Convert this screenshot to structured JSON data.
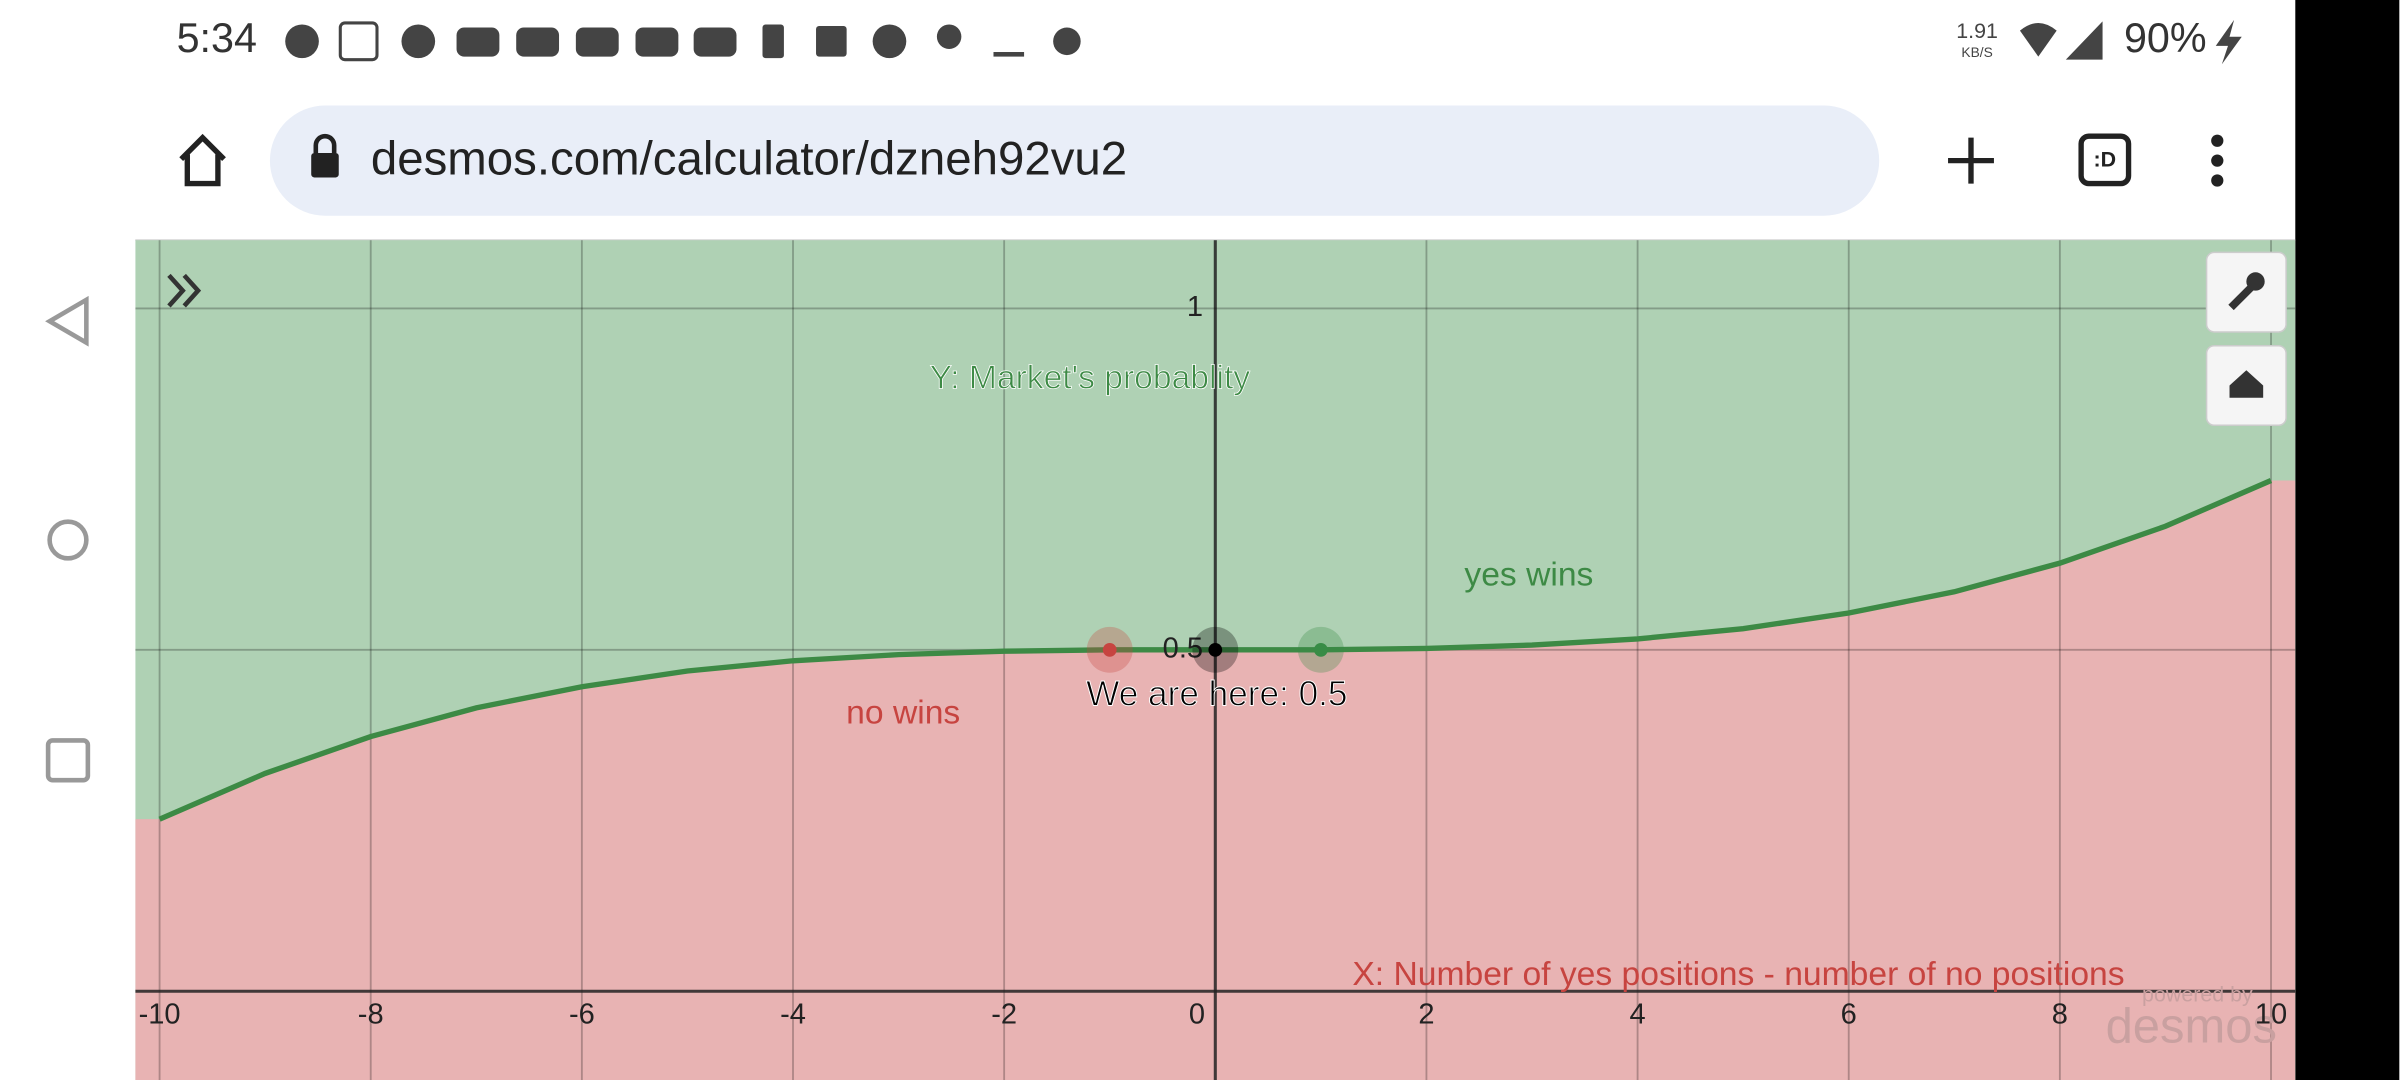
{
  "status_bar": {
    "time": "5:34",
    "network_speed": "1.91",
    "network_unit": "KB/S",
    "battery": "90%"
  },
  "browser": {
    "url": "desmos.com/calculator/dzneh92vu2",
    "tab_icon": ":D"
  },
  "graph": {
    "type": "line",
    "xlim": [
      -10.23,
      10.23
    ],
    "ylim": [
      -0.13,
      1.1
    ],
    "xticks": [
      -10,
      -8,
      -6,
      -4,
      -2,
      0,
      2,
      4,
      6,
      8,
      10
    ],
    "yticks": [
      0.5,
      1
    ],
    "grid": true,
    "curve": {
      "color": "#3d8a45",
      "x": [
        -10,
        -9,
        -8,
        -7,
        -6,
        -5,
        -4,
        -3,
        -2,
        -1,
        0,
        1,
        2,
        3,
        4,
        5,
        6,
        7,
        8,
        9,
        10
      ],
      "y": [
        0.252,
        0.319,
        0.373,
        0.415,
        0.446,
        0.469,
        0.484,
        0.493,
        0.498,
        0.5,
        0.5,
        0.5,
        0.502,
        0.507,
        0.516,
        0.531,
        0.554,
        0.585,
        0.627,
        0.681,
        0.748
      ]
    },
    "points": [
      {
        "x": -1,
        "y": 0.5,
        "color": "#c74440"
      },
      {
        "x": 0,
        "y": 0.5,
        "color": "#000000"
      },
      {
        "x": 1,
        "y": 0.5,
        "color": "#388c46"
      }
    ],
    "y_axis_label": "Y: Market's probablity",
    "x_axis_label": "X: Number of yes positions - number of no positions",
    "yes_label": "yes wins",
    "no_label": "no wins",
    "point_label": "We are here: 0.5",
    "watermark_top": "powered by",
    "watermark": "desmos"
  }
}
